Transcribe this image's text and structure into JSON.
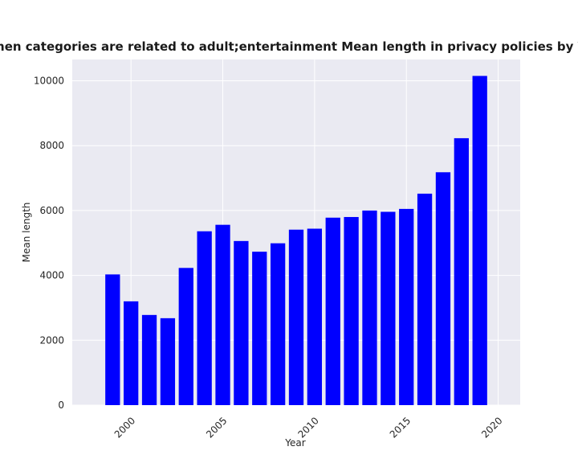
{
  "chart_data": {
    "type": "bar",
    "title": "when categories are related to adult;entertainment Mean length in privacy policies by Year",
    "xlabel": "Year",
    "ylabel": "Mean length",
    "x": [
      1999,
      2000,
      2001,
      2002,
      2003,
      2004,
      2005,
      2006,
      2007,
      2008,
      2009,
      2010,
      2011,
      2012,
      2013,
      2014,
      2015,
      2016,
      2017,
      2018,
      2019
    ],
    "values": [
      4030,
      3200,
      2780,
      2680,
      4230,
      5360,
      5560,
      5060,
      4730,
      4990,
      5410,
      5440,
      5780,
      5800,
      6000,
      5960,
      6050,
      6520,
      7180,
      8230,
      10150
    ],
    "xlim": [
      1996.8,
      2021.2
    ],
    "ylim": [
      0,
      10657
    ],
    "xticks": [
      2000,
      2005,
      2010,
      2015,
      2020
    ],
    "yticks": [
      0,
      2000,
      4000,
      6000,
      8000,
      10000
    ],
    "bar_color": "#0000ff",
    "plot_background": "#eaeaf2",
    "grid": true
  }
}
